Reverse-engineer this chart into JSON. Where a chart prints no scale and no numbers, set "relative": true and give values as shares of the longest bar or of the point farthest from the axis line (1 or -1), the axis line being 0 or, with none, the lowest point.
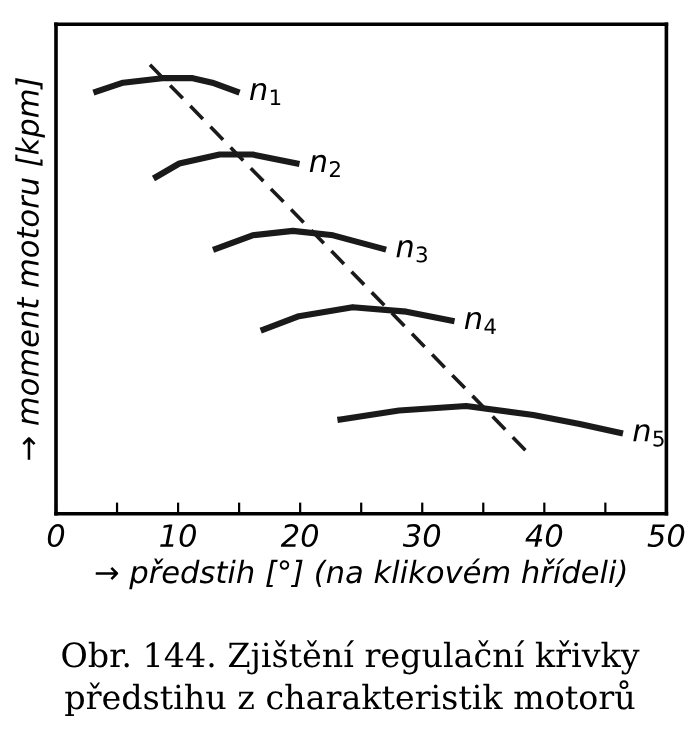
{
  "chart_data": {
    "type": "line",
    "relative": true,
    "xlabel": "→ předstih [°] (na klikovém hřídeli)",
    "ylabel": "→ moment motoru [kpm]",
    "annotations": [
      "Obr. 144. Zjištění regulační křivky předstihu z charakteristik motorů"
    ],
    "xlim": [
      0,
      50
    ],
    "xticks": [
      0,
      {
        "value": 5,
        "label": null
      },
      10,
      {
        "value": 15,
        "label": null
      },
      20,
      {
        "value": 25,
        "label": null
      },
      30,
      {
        "value": 35,
        "label": null
      },
      40,
      {
        "value": 45,
        "label": null
      },
      50
    ],
    "grid": false,
    "legend": false,
    "marker": "none",
    "line_style": "solid",
    "series": [
      {
        "name": "n$_{1}$",
        "color": "#1a1a1a",
        "x": [
          3.3,
          5.5,
          8.7,
          11.2,
          12.8,
          14.8
        ],
        "values": [
          0.94,
          0.96,
          0.97,
          0.97,
          0.96,
          0.94
        ]
      },
      {
        "name": "n$_{2}$",
        "color": "#1a1a1a",
        "x": [
          8.2,
          10.1,
          13.4,
          16.1,
          19.7
        ],
        "values": [
          0.75,
          0.78,
          0.8,
          0.8,
          0.78
        ]
      },
      {
        "name": "n$_{3}$",
        "color": "#1a1a1a",
        "x": [
          13.1,
          16.1,
          19.4,
          22.7,
          26.8
        ],
        "values": [
          0.59,
          0.62,
          0.63,
          0.62,
          0.59
        ]
      },
      {
        "name": "n$_{4}$",
        "color": "#1a1a1a",
        "x": [
          17.0,
          19.9,
          24.3,
          28.7,
          32.4
        ],
        "values": [
          0.41,
          0.44,
          0.46,
          0.45,
          0.43
        ]
      },
      {
        "name": "n$_{5}$",
        "color": "#1a1a1a",
        "x": [
          23.3,
          28.1,
          33.6,
          39.1,
          42.9,
          46.2
        ],
        "values": [
          0.21,
          0.23,
          0.24,
          0.22,
          0.2,
          0.18
        ]
      },
      {
        "color": "#1a1a1a",
        "line_style": "dashed",
        "x": [
          7.7,
          38.5
        ],
        "values": [
          1.0,
          0.14
        ]
      }
    ]
  }
}
